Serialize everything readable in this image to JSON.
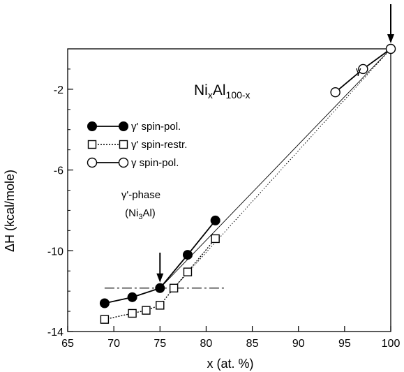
{
  "chart_data": {
    "type": "line",
    "title": "",
    "formula": {
      "base1": "Ni",
      "sub1": "x",
      "base2": "Al",
      "sub2": "100-x"
    },
    "xlabel": "x (at. %)",
    "ylabel": "ΔH (kcal/mole)",
    "xlim": [
      65,
      100
    ],
    "ylim": [
      -14,
      0
    ],
    "xticks": [
      65,
      70,
      75,
      80,
      85,
      90,
      95,
      100
    ],
    "yticks": [
      -14,
      -10,
      -6,
      -2
    ],
    "grid": false,
    "legend_position": "upper-left",
    "series": [
      {
        "name": "γ' spin-pol.",
        "marker": "filled-circle",
        "line": "solid",
        "x": [
          69,
          72,
          75,
          78,
          81
        ],
        "y": [
          -12.6,
          -12.3,
          -11.85,
          -10.2,
          -8.5
        ]
      },
      {
        "name": "γ' spin-restr.",
        "marker": "open-square",
        "line": "dotted",
        "x": [
          69,
          72,
          73.5,
          75,
          76.5,
          78,
          81
        ],
        "y": [
          -13.4,
          -13.1,
          -12.95,
          -12.7,
          -11.85,
          -11.05,
          -9.4
        ]
      },
      {
        "name": "γ spin-pol.",
        "marker": "open-circle",
        "line": "solid",
        "x": [
          94,
          97,
          100
        ],
        "y": [
          -2.15,
          -1.0,
          0.0
        ]
      }
    ],
    "reference_lines": [
      {
        "style": "solid-thin",
        "x": [
          75,
          100
        ],
        "y": [
          -11.85,
          0
        ]
      },
      {
        "style": "dotted",
        "x": [
          76.5,
          100
        ],
        "y": [
          -11.85,
          0
        ]
      },
      {
        "style": "dash-dot",
        "x": [
          69,
          82
        ],
        "y": [
          -11.85,
          -11.85
        ]
      }
    ],
    "annotations": {
      "gamma_label": "γ",
      "phase_label_line1": "γ'-phase",
      "phase_label_line2": {
        "open": "(Ni",
        "sub": "3",
        "close": "Al)"
      },
      "phase_arrow_x": 75,
      "top_arrow_x": 100
    }
  }
}
